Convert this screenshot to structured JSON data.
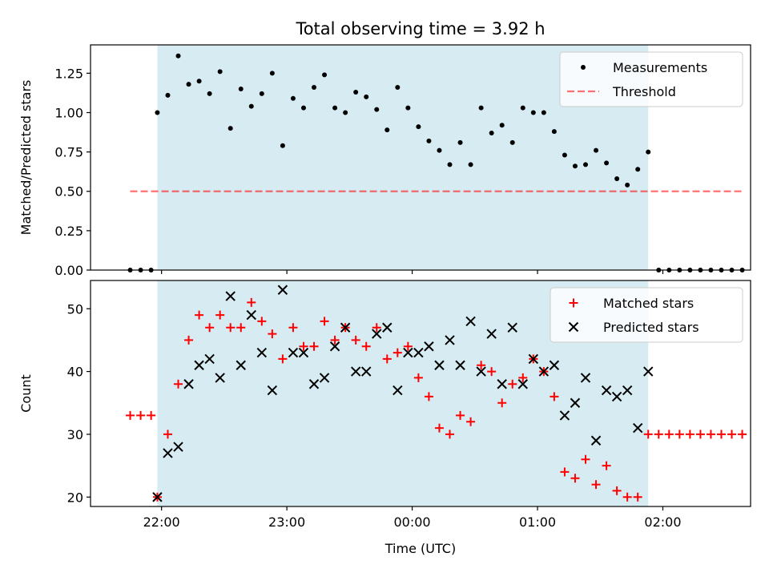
{
  "title": "Total observing time = 3.92 h",
  "colors": {
    "shade": "#add8e6",
    "measurement": "#000000",
    "threshold": "#ff0000",
    "matched": "#ff0000",
    "predicted": "#000000"
  },
  "chart_data": [
    {
      "type": "scatter",
      "panel": "top",
      "ylabel": "Matched/Predicted stars",
      "xlim": [
        "21:26",
        "02:42"
      ],
      "ylim": [
        0,
        1.43
      ],
      "yticks": [
        "0.00",
        "0.25",
        "0.50",
        "0.75",
        "1.00",
        "1.25"
      ],
      "shaded_interval": [
        "21:58",
        "01:53"
      ],
      "legend": {
        "placement": "upper right",
        "entries": [
          "Measurements",
          "Threshold"
        ]
      },
      "series": [
        {
          "name": "Measurements",
          "marker": "dot",
          "x": [
            "21:45",
            "21:50",
            "21:55",
            "21:58",
            "22:03",
            "22:08",
            "22:13",
            "22:18",
            "22:23",
            "22:28",
            "22:33",
            "22:38",
            "22:43",
            "22:48",
            "22:53",
            "22:58",
            "23:03",
            "23:08",
            "23:13",
            "23:18",
            "23:23",
            "23:28",
            "23:33",
            "23:38",
            "23:43",
            "23:48",
            "23:53",
            "23:58",
            "00:03",
            "00:08",
            "00:13",
            "00:18",
            "00:23",
            "00:28",
            "00:33",
            "00:38",
            "00:43",
            "00:48",
            "00:53",
            "00:58",
            "01:03",
            "01:08",
            "01:13",
            "01:18",
            "01:23",
            "01:28",
            "01:33",
            "01:38",
            "01:43",
            "01:48",
            "01:53",
            "01:58",
            "02:03",
            "02:08",
            "02:13",
            "02:18",
            "02:23",
            "02:28",
            "02:33",
            "02:38"
          ],
          "y": [
            0,
            0,
            0,
            1.0,
            1.11,
            1.36,
            1.18,
            1.2,
            1.12,
            1.26,
            0.9,
            1.15,
            1.04,
            1.12,
            1.25,
            0.79,
            1.09,
            1.03,
            1.16,
            1.24,
            1.03,
            1.0,
            1.13,
            1.1,
            1.02,
            0.89,
            1.16,
            1.03,
            0.91,
            0.82,
            0.76,
            0.67,
            0.81,
            0.67,
            1.03,
            0.87,
            0.92,
            0.81,
            1.03,
            1.0,
            1.0,
            0.88,
            0.73,
            0.66,
            0.67,
            0.76,
            0.68,
            0.58,
            0.54,
            0.64,
            0.75,
            0,
            0,
            0,
            0,
            0,
            0,
            0,
            0,
            0
          ]
        },
        {
          "name": "Threshold",
          "style": "dashed",
          "x": [
            "21:45",
            "02:38"
          ],
          "y": [
            0.5,
            0.5
          ]
        }
      ]
    },
    {
      "type": "scatter",
      "panel": "bottom",
      "xlabel": "Time (UTC)",
      "ylabel": "Count",
      "xlim": [
        "21:26",
        "02:42"
      ],
      "ylim": [
        18.5,
        54.5
      ],
      "xticks": [
        "22:00",
        "23:00",
        "00:00",
        "01:00",
        "02:00"
      ],
      "yticks": [
        "20",
        "30",
        "40",
        "50"
      ],
      "shaded_interval": [
        "21:58",
        "01:53"
      ],
      "legend": {
        "placement": "upper right",
        "entries": [
          "Matched stars",
          "Predicted stars"
        ]
      },
      "series": [
        {
          "name": "Matched stars",
          "marker": "plus",
          "x": [
            "21:45",
            "21:50",
            "21:55",
            "21:58",
            "22:03",
            "22:08",
            "22:13",
            "22:18",
            "22:23",
            "22:28",
            "22:33",
            "22:38",
            "22:43",
            "22:48",
            "22:53",
            "22:58",
            "23:03",
            "23:08",
            "23:13",
            "23:18",
            "23:23",
            "23:28",
            "23:33",
            "23:38",
            "23:43",
            "23:48",
            "23:53",
            "23:58",
            "00:03",
            "00:08",
            "00:13",
            "00:18",
            "00:23",
            "00:28",
            "00:33",
            "00:38",
            "00:43",
            "00:48",
            "00:53",
            "00:58",
            "01:03",
            "01:08",
            "01:13",
            "01:18",
            "01:23",
            "01:28",
            "01:33",
            "01:38",
            "01:43",
            "01:48",
            "01:53",
            "01:58",
            "02:03",
            "02:08",
            "02:13",
            "02:18",
            "02:23",
            "02:28",
            "02:33",
            "02:38"
          ],
          "y": [
            33,
            33,
            33,
            20,
            30,
            38,
            45,
            49,
            47,
            49,
            47,
            47,
            51,
            48,
            46,
            42,
            47,
            44,
            44,
            48,
            45,
            47,
            45,
            44,
            47,
            42,
            43,
            44,
            39,
            36,
            31,
            30,
            33,
            32,
            41,
            40,
            35,
            38,
            39,
            42,
            40,
            36,
            24,
            23,
            26,
            22,
            25,
            21,
            20,
            20,
            30,
            30,
            30,
            30,
            30,
            30,
            30,
            30,
            30,
            30
          ]
        },
        {
          "name": "Predicted stars",
          "marker": "x",
          "x": [
            "21:58",
            "22:03",
            "22:08",
            "22:13",
            "22:18",
            "22:23",
            "22:28",
            "22:33",
            "22:38",
            "22:43",
            "22:48",
            "22:53",
            "22:58",
            "23:03",
            "23:08",
            "23:13",
            "23:18",
            "23:23",
            "23:28",
            "23:33",
            "23:38",
            "23:43",
            "23:48",
            "23:53",
            "23:58",
            "00:03",
            "00:08",
            "00:13",
            "00:18",
            "00:23",
            "00:28",
            "00:33",
            "00:38",
            "00:43",
            "00:48",
            "00:53",
            "00:58",
            "01:03",
            "01:08",
            "01:13",
            "01:18",
            "01:23",
            "01:28",
            "01:33",
            "01:38",
            "01:43",
            "01:48",
            "01:53"
          ],
          "y": [
            20,
            27,
            28,
            38,
            41,
            42,
            39,
            52,
            41,
            49,
            43,
            37,
            53,
            43,
            43,
            38,
            39,
            44,
            47,
            40,
            40,
            46,
            47,
            37,
            43,
            43,
            44,
            41,
            45,
            41,
            48,
            40,
            46,
            38,
            47,
            38,
            42,
            40,
            41,
            33,
            35,
            39,
            29,
            37,
            36,
            37,
            31,
            40
          ]
        }
      ]
    }
  ]
}
